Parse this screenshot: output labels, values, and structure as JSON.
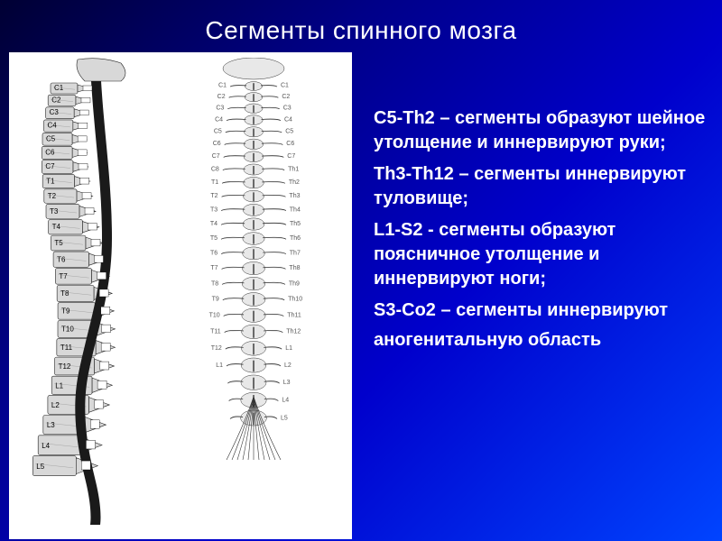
{
  "title": "Сегменты спинного мозга",
  "segments": [
    {
      "range": "С5-Th2",
      "desc": " – сегменты образуют шейное утолщение и иннервируют руки;"
    },
    {
      "range": "Th3-Th12",
      "desc": " – сегменты иннервируют туловище;"
    },
    {
      "range": "L1-S2",
      "desc": "  - сегменты образуют поясничное утолщение и иннервируют ноги;"
    },
    {
      "range": "S3-Co2",
      "desc": " – сегменты иннервируют"
    }
  ],
  "last_line": "аногенитальную область",
  "lateral_labels": [
    "C1",
    "C2",
    "C3",
    "C4",
    "C5",
    "C6",
    "C7",
    "T1",
    "T2",
    "T3",
    "T4",
    "T5",
    "T6",
    "T7",
    "T8",
    "T9",
    "T10",
    "T11",
    "T12",
    "L1",
    "L2",
    "L3",
    "L4",
    "L5"
  ],
  "posterior_labels_left": [
    "C1",
    "C2",
    "C3",
    "C4",
    "C5",
    "C6",
    "C7",
    "C8",
    "T1",
    "T2",
    "T3",
    "T4",
    "T5",
    "T6",
    "T7",
    "T8",
    "T9",
    "T10",
    "T11",
    "T12",
    "L1"
  ],
  "posterior_labels_right": [
    "C1",
    "C2",
    "C3",
    "C4",
    "C5",
    "C6",
    "C7",
    "Th1",
    "Th2",
    "Th3",
    "Th4",
    "Th5",
    "Th6",
    "Th7",
    "Th8",
    "Th9",
    "Th10",
    "Th11",
    "Th12",
    "L1",
    "L2",
    "L3",
    "L4",
    "L5",
    "S1"
  ],
  "styling": {
    "title_fontsize": 28,
    "body_fontsize": 20,
    "body_fontweight": "bold",
    "text_color": "#ffffff",
    "bg_gradient": [
      "#000033",
      "#000088",
      "#0000cc",
      "#0044ff"
    ],
    "illustration_bg": "#ffffff",
    "vert_fill": "#d8d8d8",
    "vert_stroke": "#222222",
    "label_color": "#000000",
    "cord_color": "#1a1a1a",
    "post_label_color": "#555555"
  }
}
